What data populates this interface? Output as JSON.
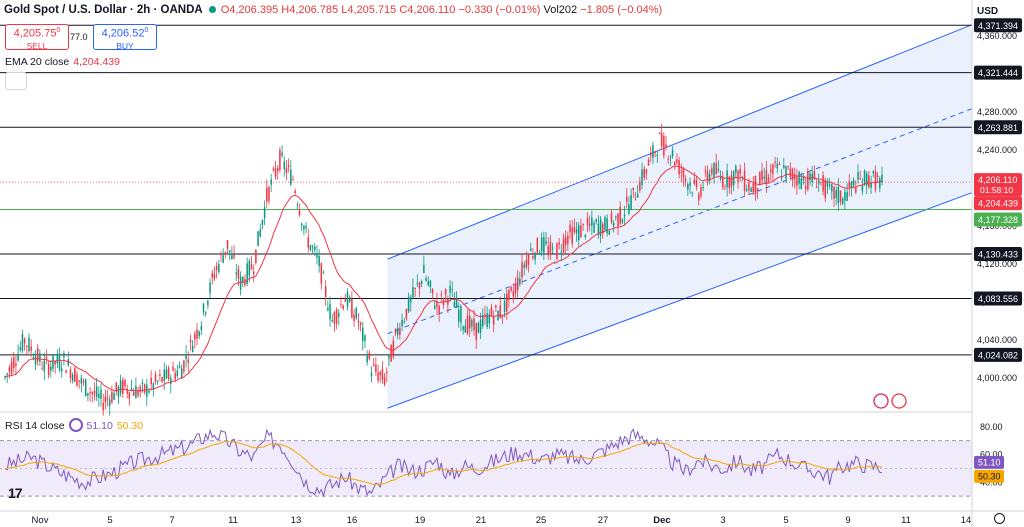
{
  "header": {
    "symbol": "Gold Spot / U.S. Dollar · 2h · OANDA",
    "open": "O4,206.395",
    "high": "H4,206.785",
    "low": "L4,205.715",
    "close": "C4,206.110",
    "change": "−0.330 (−0.01%)",
    "volume_label": "Vol202",
    "volume_change": "−1.805 (−0.04%)"
  },
  "trade": {
    "sell_price": "4,205.75",
    "sell_sup": "0",
    "sell_label": "SELL",
    "spread": "77.0",
    "buy_price": "4,206.52",
    "buy_sup": "0",
    "buy_label": "BUY"
  },
  "indicator": {
    "label": "EMA 20 close",
    "value": "4,204.439"
  },
  "rsi": {
    "label": "RSI 14 close",
    "value": "51.10",
    "ma_value": "50.30"
  },
  "axis": {
    "currency": "USD"
  },
  "colors": {
    "up": "#089981",
    "down": "#f23645",
    "ema": "#f23645",
    "channel": "#2962ff",
    "channel_fill": "#e8eefc",
    "rsi": "#7e57c2",
    "rsi_ma": "#f7a600",
    "support": "#4caf50",
    "level": "#131722"
  },
  "chart_data": [
    {
      "type": "candlestick",
      "title": "Gold Spot / U.S. Dollar · 2h · OANDA",
      "x_range": [
        "Nov",
        "14"
      ],
      "x_ticks": [
        "Nov",
        "5",
        "7",
        "11",
        "13",
        "16",
        "19",
        "21",
        "25",
        "27",
        "Dec",
        "3",
        "5",
        "9",
        "11",
        "14"
      ],
      "y_ticks": [
        4000,
        4040,
        4080,
        4120,
        4160,
        4200,
        4240,
        4280,
        4320,
        4360
      ],
      "ylim": [
        3965,
        4398
      ],
      "horizontal_levels": [
        "4,371.394",
        "4,321.444",
        "4,263.881",
        "4,130.433",
        "4,083.556",
        "4,024.082"
      ],
      "support_level": "4,177.328",
      "price_labels": {
        "last": "4,206.110",
        "countdown": "01:58:10",
        "ema": "4,204.439",
        "support": "4,177.328"
      },
      "price_path": [
        [
          0,
          4000
        ],
        [
          3,
          4040
        ],
        [
          6,
          4012
        ],
        [
          9,
          4018
        ],
        [
          12,
          3992
        ],
        [
          15,
          3975
        ],
        [
          18,
          3990
        ],
        [
          21,
          3985
        ],
        [
          24,
          3998
        ],
        [
          27,
          4010
        ],
        [
          30,
          4060
        ],
        [
          32,
          4110
        ],
        [
          34,
          4140
        ],
        [
          36,
          4100
        ],
        [
          38,
          4120
        ],
        [
          40,
          4190
        ],
        [
          42,
          4230
        ],
        [
          44,
          4210
        ],
        [
          46,
          4150
        ],
        [
          48,
          4120
        ],
        [
          50,
          4060
        ],
        [
          52,
          4085
        ],
        [
          54,
          4060
        ],
        [
          56,
          4010
        ],
        [
          58,
          3998
        ],
        [
          60,
          4050
        ],
        [
          62,
          4080
        ],
        [
          64,
          4110
        ],
        [
          66,
          4075
        ],
        [
          68,
          4090
        ],
        [
          70,
          4060
        ],
        [
          72,
          4050
        ],
        [
          74,
          4065
        ],
        [
          76,
          4070
        ],
        [
          78,
          4095
        ],
        [
          80,
          4130
        ],
        [
          82,
          4140
        ],
        [
          84,
          4130
        ],
        [
          86,
          4150
        ],
        [
          88,
          4155
        ],
        [
          90,
          4160
        ],
        [
          92,
          4160
        ],
        [
          94,
          4170
        ],
        [
          96,
          4190
        ],
        [
          98,
          4220
        ],
        [
          100,
          4250
        ],
        [
          102,
          4235
        ],
        [
          104,
          4210
        ],
        [
          106,
          4195
        ],
        [
          108,
          4220
        ],
        [
          110,
          4208
        ],
        [
          112,
          4215
        ],
        [
          114,
          4200
        ],
        [
          116,
          4210
        ],
        [
          118,
          4220
        ],
        [
          120,
          4215
        ],
        [
          122,
          4208
        ],
        [
          124,
          4210
        ],
        [
          126,
          4195
        ],
        [
          128,
          4190
        ],
        [
          130,
          4205
        ],
        [
          132,
          4210
        ],
        [
          134,
          4206
        ]
      ],
      "ema_label": "EMA 20 close 4,204.439"
    },
    {
      "type": "line",
      "title": "RSI 14 close",
      "ylim": [
        20,
        90
      ],
      "y_ticks": [
        40,
        60,
        80
      ],
      "bands": [
        30,
        70
      ],
      "series": [
        {
          "name": "RSI 14 close",
          "last": "51.10"
        },
        {
          "name": "RSI MA",
          "last": "50.30"
        }
      ],
      "rsi_path": [
        [
          0,
          52
        ],
        [
          4,
          58
        ],
        [
          8,
          48
        ],
        [
          12,
          40
        ],
        [
          16,
          46
        ],
        [
          20,
          55
        ],
        [
          24,
          60
        ],
        [
          28,
          66
        ],
        [
          30,
          72
        ],
        [
          32,
          76
        ],
        [
          34,
          70
        ],
        [
          36,
          62
        ],
        [
          38,
          58
        ],
        [
          40,
          72
        ],
        [
          42,
          68
        ],
        [
          44,
          55
        ],
        [
          46,
          40
        ],
        [
          48,
          35
        ],
        [
          50,
          38
        ],
        [
          52,
          44
        ],
        [
          54,
          36
        ],
        [
          56,
          32
        ],
        [
          58,
          42
        ],
        [
          60,
          52
        ],
        [
          62,
          48
        ],
        [
          64,
          50
        ],
        [
          66,
          56
        ],
        [
          68,
          44
        ],
        [
          70,
          52
        ],
        [
          72,
          50
        ],
        [
          74,
          54
        ],
        [
          76,
          58
        ],
        [
          78,
          62
        ],
        [
          80,
          60
        ],
        [
          82,
          56
        ],
        [
          84,
          60
        ],
        [
          86,
          58
        ],
        [
          88,
          56
        ],
        [
          90,
          60
        ],
        [
          92,
          64
        ],
        [
          94,
          70
        ],
        [
          96,
          74
        ],
        [
          98,
          72
        ],
        [
          100,
          66
        ],
        [
          102,
          54
        ],
        [
          104,
          48
        ],
        [
          106,
          56
        ],
        [
          108,
          52
        ],
        [
          110,
          50
        ],
        [
          112,
          56
        ],
        [
          114,
          48
        ],
        [
          116,
          52
        ],
        [
          118,
          60
        ],
        [
          120,
          56
        ],
        [
          122,
          50
        ],
        [
          124,
          48
        ],
        [
          126,
          44
        ],
        [
          128,
          52
        ],
        [
          130,
          54
        ],
        [
          132,
          52
        ],
        [
          134,
          51
        ]
      ]
    }
  ]
}
